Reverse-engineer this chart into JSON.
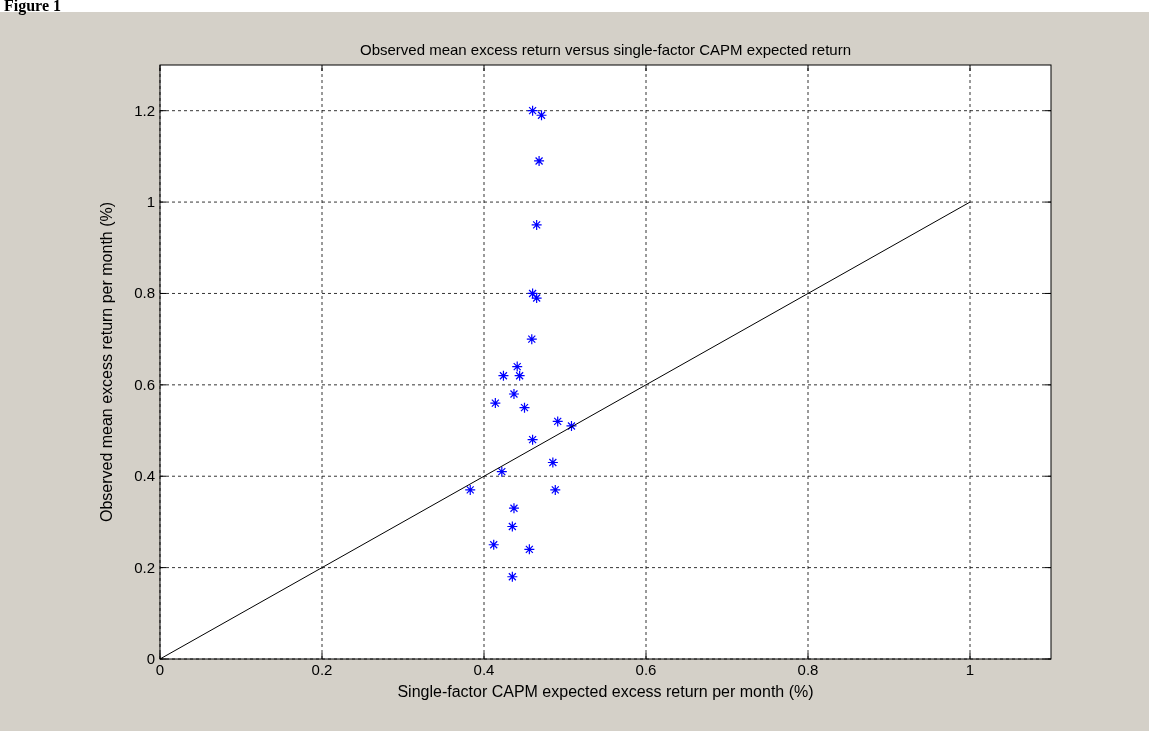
{
  "chart_data": {
    "type": "scatter",
    "title": "Observed mean excess return versus single-factor CAPM expected return",
    "xlabel": "Single-factor CAPM expected excess return per month (%)",
    "ylabel": "Observed mean excess return per month (%)",
    "annotations": [
      "Figure 1"
    ],
    "xlim": [
      0,
      1.1
    ],
    "ylim": [
      0,
      1.3
    ],
    "xticks": [
      0,
      0.2,
      0.4,
      0.6,
      0.8,
      1
    ],
    "yticks": [
      0,
      0.2,
      0.4,
      0.6,
      0.8,
      1,
      1.2
    ],
    "grid": true,
    "series": [
      {
        "color": "#0000ff",
        "marker": "cross",
        "x": [
          0.46,
          0.471,
          0.468,
          0.465,
          0.46,
          0.465,
          0.459,
          0.441,
          0.424,
          0.444,
          0.437,
          0.414,
          0.45,
          0.491,
          0.508,
          0.46,
          0.485,
          0.422,
          0.383,
          0.488,
          0.437,
          0.435,
          0.412,
          0.456,
          0.435
        ],
        "values": [
          1.2,
          1.19,
          1.09,
          0.95,
          0.8,
          0.79,
          0.7,
          0.64,
          0.62,
          0.62,
          0.58,
          0.56,
          0.55,
          0.52,
          0.51,
          0.48,
          0.43,
          0.41,
          0.37,
          0.37,
          0.33,
          0.29,
          0.25,
          0.24,
          0.18
        ]
      },
      {
        "type": "line",
        "color": "#000000",
        "marker": "none",
        "line_style": "solid",
        "x": [
          0,
          1
        ],
        "values": [
          0,
          1
        ]
      }
    ]
  }
}
